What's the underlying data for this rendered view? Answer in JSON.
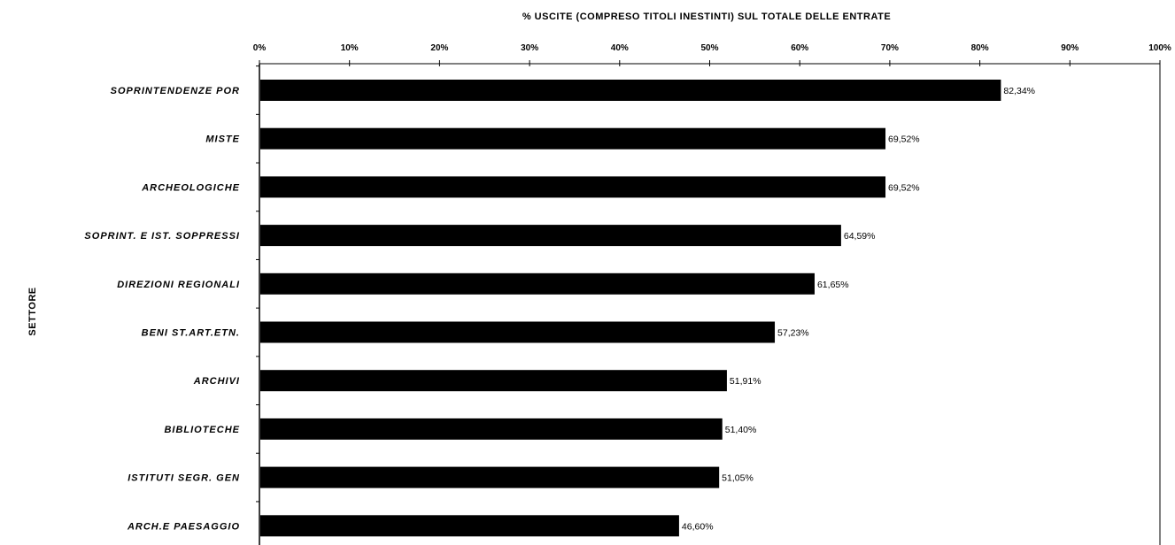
{
  "chart_data": {
    "type": "bar",
    "orientation": "horizontal",
    "title": "% USCITE (COMPRESO TITOLI INESTINTI) SUL TOTALE DELLE ENTRATE",
    "ylabel": "SETTORE",
    "xlim": [
      0,
      100
    ],
    "x_ticks": [
      "0%",
      "10%",
      "20%",
      "30%",
      "40%",
      "50%",
      "60%",
      "70%",
      "80%",
      "90%",
      "100%"
    ],
    "categories": [
      "SOPRINTENDENZE POR",
      "MISTE",
      "ARCHEOLOGICHE",
      "SOPRINT. E IST. SOPPRESSI",
      "DIREZIONI REGIONALI",
      "BENI ST.ART.ETN.",
      "ARCHIVI",
      "BIBLIOTECHE",
      "ISTITUTI SEGR. GEN",
      "ARCH.E PAESAGGIO"
    ],
    "values": [
      82.34,
      69.52,
      69.52,
      64.59,
      61.65,
      57.23,
      51.91,
      51.4,
      51.05,
      46.6
    ],
    "data_labels": [
      "82,34%",
      "69,52%",
      "69,52%",
      "64,59%",
      "61,65%",
      "57,23%",
      "51,91%",
      "51,40%",
      "51,05%",
      "46,60%"
    ],
    "bar_color": "#000000",
    "grid": false,
    "legend": "none"
  }
}
